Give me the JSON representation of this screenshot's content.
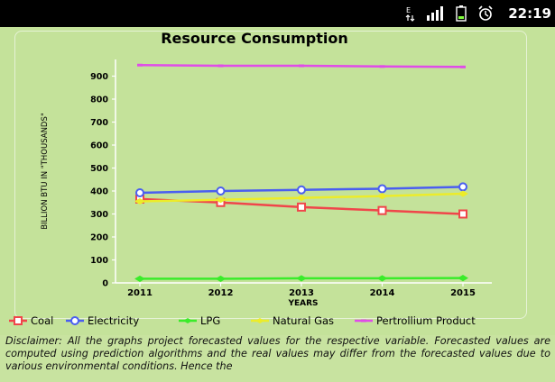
{
  "status_bar": {
    "time": "22:19",
    "icons": [
      "data-transfer-icon",
      "signal-icon",
      "battery-icon",
      "alarm-icon"
    ]
  },
  "chart_data": {
    "type": "line",
    "title": "Resource Consumption",
    "xlabel": "YEARS",
    "ylabel": "BILLION BTU IN \"THOUSANDS\"",
    "categories": [
      "2011",
      "2012",
      "2013",
      "2014",
      "2015"
    ],
    "ylim": [
      0,
      1000
    ],
    "yticks": [
      0,
      100,
      200,
      300,
      400,
      500,
      600,
      700,
      800,
      900
    ],
    "grid": false,
    "legend_position": "bottom",
    "series": [
      {
        "name": "Coal",
        "color": "#f0454a",
        "values": [
          365,
          350,
          330,
          315,
          300
        ]
      },
      {
        "name": "Electricity",
        "color": "#4a5ef0",
        "values": [
          392,
          400,
          405,
          410,
          418
        ]
      },
      {
        "name": "LPG",
        "color": "#3aec2a",
        "values": [
          18,
          18,
          20,
          20,
          21
        ]
      },
      {
        "name": "Natural Gas",
        "color": "#ecec2a",
        "values": [
          355,
          362,
          370,
          378,
          388
        ]
      },
      {
        "name": "Pertrollium Product",
        "color": "#e04ce8",
        "values": [
          948,
          945,
          945,
          942,
          940
        ]
      }
    ]
  },
  "disclaimer": {
    "text": "Disclaimer: All the graphs project forecasted values for the respective variable. Forecasted values are computed using prediction algorithms and the real values may differ from the forecasted values due to various environmental conditions. Hence the"
  }
}
